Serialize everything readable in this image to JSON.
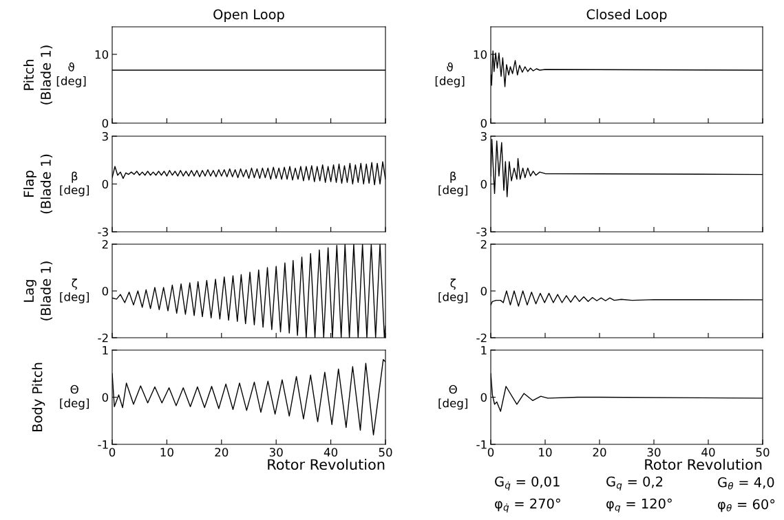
{
  "chart_data": [
    {
      "type": "line",
      "title": "Open Loop",
      "ylabel": "ϑ\n[deg]",
      "annotations": [
        "Pitch\n(Blade 1)"
      ],
      "xlim": [
        0,
        50
      ],
      "xticks": [
        0,
        10,
        20,
        30,
        40,
        50
      ],
      "ylim": [
        0,
        14
      ],
      "yticks": [
        0,
        10
      ],
      "tick_labels": "y",
      "series": [
        {
          "color": "#000000",
          "x": [
            0,
            50
          ],
          "values": [
            7.7,
            7.7
          ]
        }
      ]
    },
    {
      "type": "line",
      "title": "Closed Loop",
      "ylabel": "ϑ\n[deg]",
      "xlim": [
        0,
        50
      ],
      "xticks": [
        0,
        10,
        20,
        30,
        40,
        50
      ],
      "ylim": [
        0,
        14
      ],
      "yticks": [
        0,
        10
      ],
      "tick_labels": "y",
      "series": [
        {
          "color": "#000000",
          "x": [
            0,
            0.15,
            0.4,
            0.6,
            0.9,
            1.2,
            1.5,
            1.9,
            2.2,
            2.6,
            2.9,
            3.3,
            3.6,
            4.0,
            4.5,
            4.9,
            5.3,
            5.8,
            6.3,
            6.8,
            7.3,
            7.8,
            8.4,
            9,
            10,
            50
          ],
          "values": [
            7.0,
            5.5,
            10.5,
            7.5,
            10.2,
            8.0,
            10.2,
            6.8,
            9.5,
            5.3,
            8.5,
            7.0,
            8.2,
            7.2,
            9.1,
            7.0,
            8.4,
            7.4,
            8.2,
            7.5,
            8.0,
            7.6,
            7.9,
            7.7,
            7.8,
            7.7
          ]
        }
      ]
    },
    {
      "type": "line",
      "ylabel": "β\n[deg]",
      "annotations": [
        "Flap\n(Blade 1)"
      ],
      "xlim": [
        0,
        50
      ],
      "xticks": [
        0,
        10,
        20,
        30,
        40,
        50
      ],
      "ylim": [
        -3,
        3
      ],
      "yticks": [
        -3,
        0,
        3
      ],
      "tick_labels": "y",
      "series": [
        {
          "color": "#000000",
          "x": [
            0,
            0.5,
            1,
            1.5,
            2,
            2.5,
            3,
            3.5,
            4,
            4.5,
            5,
            5.5,
            6,
            6.5,
            7,
            7.5,
            8,
            8.5,
            9,
            9.5,
            10,
            10.5,
            11,
            11.5,
            12,
            12.5,
            13,
            13.5,
            14,
            14.5,
            15,
            15.5,
            16,
            16.5,
            17,
            17.5,
            18,
            18.5,
            19,
            19.5,
            20,
            20.5,
            21,
            21.5,
            22,
            22.5,
            23,
            23.5,
            24,
            24.5,
            25,
            25.5,
            26,
            26.5,
            27,
            27.5,
            28,
            28.5,
            29,
            29.5,
            30,
            30.5,
            31,
            31.5,
            32,
            32.5,
            33,
            33.5,
            34,
            34.5,
            35,
            35.5,
            36,
            36.5,
            37,
            37.5,
            38,
            38.5,
            39,
            39.5,
            40,
            40.5,
            41,
            41.5,
            42,
            42.5,
            43,
            43.5,
            44,
            44.5,
            45,
            45.5,
            46,
            46.5,
            47,
            47.5,
            48,
            48.5,
            49,
            49.5,
            50
          ],
          "values": [
            0.4,
            1.1,
            0.55,
            0.75,
            0.35,
            0.7,
            0.6,
            0.75,
            0.6,
            0.8,
            0.55,
            0.75,
            0.55,
            0.8,
            0.55,
            0.75,
            0.55,
            0.8,
            0.55,
            0.8,
            0.5,
            0.85,
            0.55,
            0.8,
            0.5,
            0.85,
            0.5,
            0.8,
            0.5,
            0.85,
            0.5,
            0.85,
            0.45,
            0.85,
            0.5,
            0.9,
            0.5,
            0.85,
            0.45,
            0.9,
            0.5,
            0.9,
            0.45,
            0.95,
            0.45,
            0.9,
            0.4,
            0.95,
            0.45,
            0.9,
            0.35,
            1.0,
            0.4,
            0.95,
            0.35,
            1.0,
            0.4,
            1.0,
            0.3,
            1.05,
            0.35,
            1.0,
            0.3,
            1.05,
            0.3,
            1.1,
            0.25,
            1.0,
            0.3,
            1.1,
            0.2,
            1.1,
            0.25,
            1.15,
            0.15,
            1.1,
            0.2,
            1.2,
            0.1,
            1.1,
            0.15,
            1.2,
            0.1,
            1.25,
            0.05,
            1.15,
            0.1,
            1.3,
            0.0,
            1.2,
            0.1,
            1.3,
            0.0,
            1.25,
            0.05,
            1.35,
            -0.05,
            1.3,
            0.0,
            1.4,
            0.3
          ]
        }
      ]
    },
    {
      "type": "line",
      "ylabel": "β\n[deg]",
      "xlim": [
        0,
        50
      ],
      "xticks": [
        0,
        10,
        20,
        30,
        40,
        50
      ],
      "ylim": [
        -3,
        3
      ],
      "yticks": [
        -3,
        0,
        3
      ],
      "tick_labels": "y",
      "series": [
        {
          "color": "#000000",
          "x": [
            0,
            0.2,
            0.45,
            0.7,
            1.1,
            1.5,
            2.0,
            2.4,
            2.7,
            3.0,
            3.4,
            3.8,
            4.3,
            4.8,
            5.0,
            5.4,
            5.9,
            6.3,
            6.8,
            7.3,
            7.8,
            8.3,
            9,
            10,
            50
          ],
          "values": [
            0.5,
            2.8,
            1.0,
            -0.6,
            2.7,
            0.5,
            2.6,
            -0.4,
            1.4,
            -0.8,
            1.4,
            0.2,
            1.0,
            0.3,
            1.6,
            0.3,
            1.0,
            0.4,
            1.0,
            0.5,
            0.8,
            0.55,
            0.75,
            0.65,
            0.6
          ]
        }
      ]
    },
    {
      "type": "line",
      "ylabel": "ζ\n[deg]",
      "annotations": [
        "Lag\n(Blade 1)"
      ],
      "xlim": [
        0,
        50
      ],
      "xticks": [
        0,
        10,
        20,
        30,
        40,
        50
      ],
      "ylim": [
        -2,
        2
      ],
      "yticks": [
        -2,
        0,
        2
      ],
      "tick_labels": "y",
      "series": [
        {
          "color": "#000000",
          "x": [
            0,
            0.8,
            1.5,
            2.3,
            3.1,
            3.9,
            4.7,
            5.5,
            6.2,
            7.0,
            7.8,
            8.6,
            9.4,
            10.2,
            11.0,
            11.8,
            12.6,
            13.4,
            14.2,
            15.0,
            15.7,
            16.5,
            17.3,
            18.1,
            18.9,
            19.7,
            20.5,
            21.3,
            22.1,
            22.9,
            23.6,
            24.4,
            25.2,
            26.0,
            26.8,
            27.6,
            28.4,
            29.2,
            30.0,
            30.8,
            31.6,
            32.4,
            33.1,
            33.9,
            34.7,
            35.5,
            36.3,
            37.1,
            37.9,
            38.7,
            39.5,
            40.3,
            41.1,
            41.9,
            42.6,
            43.4,
            44.2,
            45.0,
            45.8,
            46.6,
            47.4,
            48.2,
            49.0,
            49.8,
            50
          ],
          "values": [
            -0.3,
            -0.35,
            -0.15,
            -0.5,
            -0.05,
            -0.6,
            0.0,
            -0.7,
            0.05,
            -0.75,
            0.15,
            -0.8,
            0.15,
            -0.85,
            0.25,
            -0.95,
            0.3,
            -1.0,
            0.35,
            -1.05,
            0.4,
            -1.1,
            0.45,
            -1.15,
            0.5,
            -1.2,
            0.6,
            -1.25,
            0.65,
            -1.3,
            0.7,
            -1.4,
            0.8,
            -1.45,
            0.9,
            -1.55,
            1.0,
            -1.65,
            1.05,
            -1.75,
            1.2,
            -1.8,
            1.3,
            -1.9,
            1.45,
            -2,
            1.6,
            -2,
            1.75,
            -2,
            1.85,
            -2,
            1.95,
            -2,
            2,
            -2,
            2,
            -2,
            2,
            -2,
            2,
            -2,
            2,
            -2,
            -1.5
          ]
        }
      ]
    },
    {
      "type": "line",
      "ylabel": "ζ\n[deg]",
      "xlim": [
        0,
        50
      ],
      "xticks": [
        0,
        10,
        20,
        30,
        40,
        50
      ],
      "ylim": [
        -2,
        2
      ],
      "yticks": [
        -2,
        0,
        2
      ],
      "tick_labels": "y",
      "series": [
        {
          "color": "#000000",
          "x": [
            0,
            0.3,
            1,
            1.8,
            2.3,
            2.9,
            3.6,
            4.3,
            5.1,
            5.9,
            6.7,
            7.5,
            8.3,
            9.1,
            9.9,
            10.7,
            11.5,
            12.3,
            13.1,
            13.9,
            14.7,
            15.5,
            16.3,
            17.1,
            17.9,
            18.7,
            19.5,
            20.3,
            21.1,
            21.9,
            22.7,
            24,
            26,
            30,
            50
          ],
          "values": [
            -0.6,
            -0.45,
            -0.4,
            -0.4,
            -0.5,
            0.0,
            -0.6,
            0.0,
            -0.65,
            0.0,
            -0.6,
            -0.05,
            -0.55,
            -0.1,
            -0.5,
            -0.1,
            -0.5,
            -0.15,
            -0.5,
            -0.2,
            -0.48,
            -0.2,
            -0.45,
            -0.25,
            -0.45,
            -0.28,
            -0.42,
            -0.3,
            -0.42,
            -0.3,
            -0.4,
            -0.36,
            -0.4,
            -0.37,
            -0.38
          ]
        }
      ]
    },
    {
      "type": "line",
      "ylabel": "Θ\n[deg]",
      "xlabel": "Rotor Revolution",
      "annotations": [
        "Body Pitch"
      ],
      "xlim": [
        0,
        50
      ],
      "xticks": [
        0,
        10,
        20,
        30,
        40,
        50
      ],
      "ylim": [
        -1,
        1
      ],
      "yticks": [
        -1,
        0,
        1
      ],
      "series": [
        {
          "color": "#000000",
          "x": [
            0,
            0.4,
            1.2,
            1.9,
            2.6,
            3.9,
            5.2,
            6.5,
            7.8,
            9.1,
            10.4,
            11.7,
            13.0,
            14.3,
            15.6,
            16.9,
            18.2,
            19.5,
            20.8,
            22.1,
            23.3,
            24.6,
            26,
            27.2,
            28.5,
            29.8,
            31.1,
            32.4,
            33.7,
            35,
            36.3,
            37.6,
            38.9,
            40.2,
            41.4,
            42.8,
            44,
            45.4,
            46.4,
            47.8,
            49.6,
            50
          ],
          "values": [
            0.5,
            -0.2,
            0.05,
            -0.22,
            0.3,
            -0.15,
            0.24,
            -0.12,
            0.22,
            -0.12,
            0.2,
            -0.18,
            0.2,
            -0.2,
            0.22,
            -0.22,
            0.23,
            -0.24,
            0.28,
            -0.26,
            0.3,
            -0.28,
            0.32,
            -0.32,
            0.34,
            -0.36,
            0.37,
            -0.4,
            0.44,
            -0.46,
            0.47,
            -0.52,
            0.53,
            -0.58,
            0.6,
            -0.64,
            0.65,
            -0.7,
            0.72,
            -0.8,
            0.8,
            0.75
          ]
        }
      ]
    },
    {
      "type": "line",
      "ylabel": "Θ\n[deg]",
      "xlabel": "Rotor Revolution",
      "annotations": [
        "G$_{q̇}$ = 0,01",
        "φ$_{q̇}$ = 270°",
        "G$_{q}$ = 0,2",
        "φ$_{q}$ = 120°",
        "G$_{θ}$ = 4,0",
        "φ$_{θ}$ = 60°"
      ],
      "xlim": [
        0,
        50
      ],
      "xticks": [
        0,
        10,
        20,
        30,
        40,
        50
      ],
      "ylim": [
        -1,
        1
      ],
      "yticks": [
        -1,
        0,
        1
      ],
      "series": [
        {
          "color": "#000000",
          "x": [
            0,
            0.3,
            0.7,
            1.1,
            1.8,
            2.8,
            4.8,
            6.1,
            7.7,
            9.2,
            10.5,
            16,
            20,
            50
          ],
          "values": [
            0.5,
            0.05,
            -0.15,
            -0.1,
            -0.3,
            0.23,
            -0.15,
            0.08,
            -0.07,
            0.02,
            -0.02,
            0.0,
            0.0,
            -0.02
          ]
        }
      ]
    }
  ]
}
